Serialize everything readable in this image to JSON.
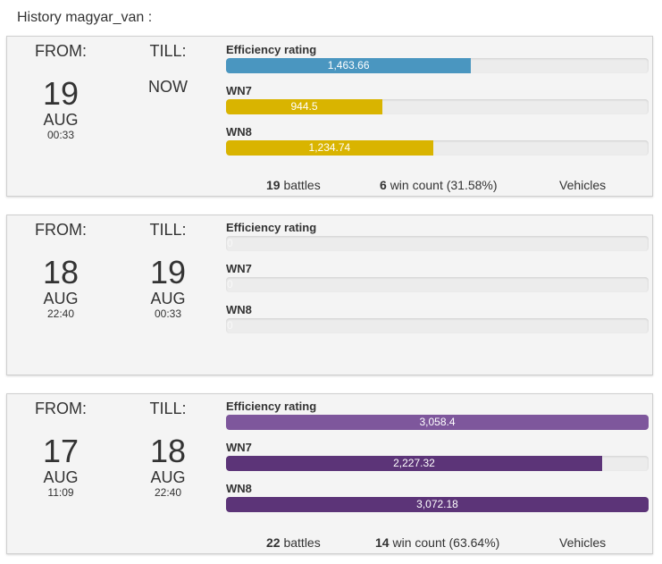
{
  "page_title": "History magyar_van :",
  "labels": {
    "from": "FROM:",
    "till": "TILL:",
    "efficiency": "Efficiency rating",
    "wn7": "WN7",
    "wn8": "WN8",
    "battles": "battles",
    "win_count": "win count",
    "vehicles": "Vehicles"
  },
  "cards": [
    {
      "from": {
        "day": "19",
        "month": "AUG",
        "time": "00:33"
      },
      "till": {
        "now": "NOW"
      },
      "metrics": {
        "efficiency": {
          "value": "1,463.66",
          "fraction": 0.58,
          "color": "#4a96c0"
        },
        "wn7": {
          "value": "944.5",
          "fraction": 0.37,
          "color": "#d9b400"
        },
        "wn8": {
          "value": "1,234.74",
          "fraction": 0.49,
          "color": "#d9b400"
        }
      },
      "footer": {
        "battles": "19",
        "wins": "6",
        "win_pct": "(31.58%)"
      }
    },
    {
      "from": {
        "day": "18",
        "month": "AUG",
        "time": "22:40"
      },
      "till": {
        "day": "19",
        "month": "AUG",
        "time": "00:33"
      },
      "metrics": {
        "efficiency": {
          "value": "0",
          "fraction": 0,
          "color": "#ececec"
        },
        "wn7": {
          "value": "0",
          "fraction": 0,
          "color": "#ececec"
        },
        "wn8": {
          "value": "0",
          "fraction": 0,
          "color": "#ececec"
        }
      }
    },
    {
      "from": {
        "day": "17",
        "month": "AUG",
        "time": "11:09"
      },
      "till": {
        "day": "18",
        "month": "AUG",
        "time": "22:40"
      },
      "metrics": {
        "efficiency": {
          "value": "3,058.4",
          "fraction": 1.0,
          "color": "#7e579c"
        },
        "wn7": {
          "value": "2,227.32",
          "fraction": 0.89,
          "color": "#5c3478"
        },
        "wn8": {
          "value": "3,072.18",
          "fraction": 1.0,
          "color": "#5c3478"
        }
      },
      "footer": {
        "battles": "22",
        "wins": "14",
        "win_pct": "(63.64%)"
      }
    }
  ]
}
